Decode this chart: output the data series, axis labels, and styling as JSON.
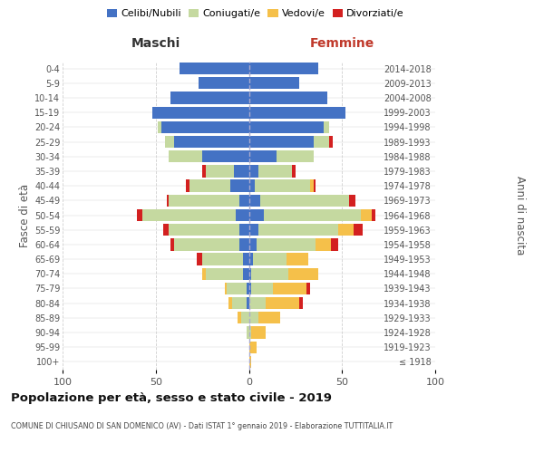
{
  "age_groups": [
    "100+",
    "95-99",
    "90-94",
    "85-89",
    "80-84",
    "75-79",
    "70-74",
    "65-69",
    "60-64",
    "55-59",
    "50-54",
    "45-49",
    "40-44",
    "35-39",
    "30-34",
    "25-29",
    "20-24",
    "15-19",
    "10-14",
    "5-9",
    "0-4"
  ],
  "birth_years": [
    "≤ 1918",
    "1919-1923",
    "1924-1928",
    "1929-1933",
    "1934-1938",
    "1939-1943",
    "1944-1948",
    "1949-1953",
    "1954-1958",
    "1959-1963",
    "1964-1968",
    "1969-1973",
    "1974-1978",
    "1979-1983",
    "1984-1988",
    "1989-1993",
    "1994-1998",
    "1999-2003",
    "2004-2008",
    "2009-2013",
    "2014-2018"
  ],
  "maschi": {
    "celibi": [
      0,
      0,
      0,
      0,
      1,
      1,
      3,
      3,
      5,
      5,
      7,
      5,
      10,
      8,
      25,
      40,
      47,
      52,
      42,
      27,
      37
    ],
    "coniugati": [
      0,
      0,
      1,
      4,
      8,
      11,
      20,
      22,
      35,
      38,
      50,
      38,
      22,
      15,
      18,
      5,
      2,
      0,
      0,
      0,
      0
    ],
    "vedovi": [
      0,
      0,
      0,
      2,
      2,
      1,
      2,
      0,
      0,
      0,
      0,
      0,
      0,
      0,
      0,
      0,
      0,
      0,
      0,
      0,
      0
    ],
    "divorziati": [
      0,
      0,
      0,
      0,
      0,
      0,
      0,
      3,
      2,
      3,
      3,
      1,
      2,
      2,
      0,
      0,
      0,
      0,
      0,
      0,
      0
    ]
  },
  "femmine": {
    "nubili": [
      0,
      0,
      0,
      0,
      0,
      1,
      1,
      2,
      4,
      5,
      8,
      6,
      3,
      5,
      15,
      35,
      40,
      52,
      42,
      27,
      37
    ],
    "coniugate": [
      0,
      0,
      1,
      5,
      9,
      12,
      20,
      18,
      32,
      43,
      52,
      48,
      30,
      18,
      20,
      8,
      3,
      0,
      0,
      0,
      0
    ],
    "vedove": [
      1,
      4,
      8,
      12,
      18,
      18,
      16,
      12,
      8,
      8,
      6,
      0,
      2,
      0,
      0,
      0,
      0,
      0,
      0,
      0,
      0
    ],
    "divorziate": [
      0,
      0,
      0,
      0,
      2,
      2,
      0,
      0,
      4,
      5,
      2,
      3,
      1,
      2,
      0,
      2,
      0,
      0,
      0,
      0,
      0
    ]
  },
  "colors": {
    "celibi": "#4472c4",
    "coniugati": "#c5d9a0",
    "vedovi": "#f5c04a",
    "divorziati": "#d32020"
  },
  "legend_labels": [
    "Celibi/Nubili",
    "Coniugati/e",
    "Vedovi/e",
    "Divorziati/e"
  ],
  "title": "Popolazione per età, sesso e stato civile - 2019",
  "subtitle": "COMUNE DI CHIUSANO DI SAN DOMENICO (AV) - Dati ISTAT 1° gennaio 2019 - Elaborazione TUTTITALIA.IT",
  "label_maschi": "Maschi",
  "label_femmine": "Femmine",
  "ylabel_left": "Fasce di età",
  "ylabel_right": "Anni di nascita",
  "xlim": 100,
  "bg_color": "#ffffff",
  "grid_color": "#d0d0d0",
  "text_color": "#555555"
}
